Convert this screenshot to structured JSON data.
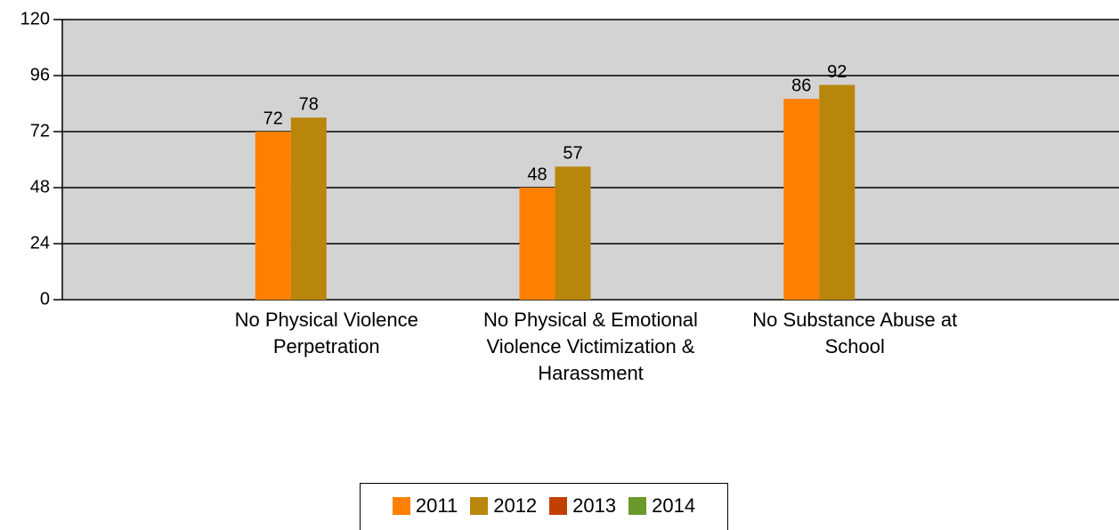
{
  "chart_data": {
    "type": "bar",
    "categories": [
      "No Physical Violence Perpetration",
      "No Physical & Emotional Violence Victimization & Harassment",
      "No Substance Abuse at School"
    ],
    "series": [
      {
        "name": "2011",
        "color": "#ff8000",
        "values": [
          72,
          48,
          86
        ]
      },
      {
        "name": "2012",
        "color": "#b8860b",
        "values": [
          78,
          57,
          92
        ]
      },
      {
        "name": "2013",
        "color": "#c04000",
        "values": [
          null,
          null,
          null
        ]
      },
      {
        "name": "2014",
        "color": "#6b9a2a",
        "values": [
          null,
          null,
          null
        ]
      }
    ],
    "ylim": [
      0,
      120
    ],
    "yticks": [
      0,
      24,
      48,
      72,
      96,
      120
    ],
    "grid": true,
    "plot_background": "#d3d3d3",
    "legend": "bottom"
  }
}
